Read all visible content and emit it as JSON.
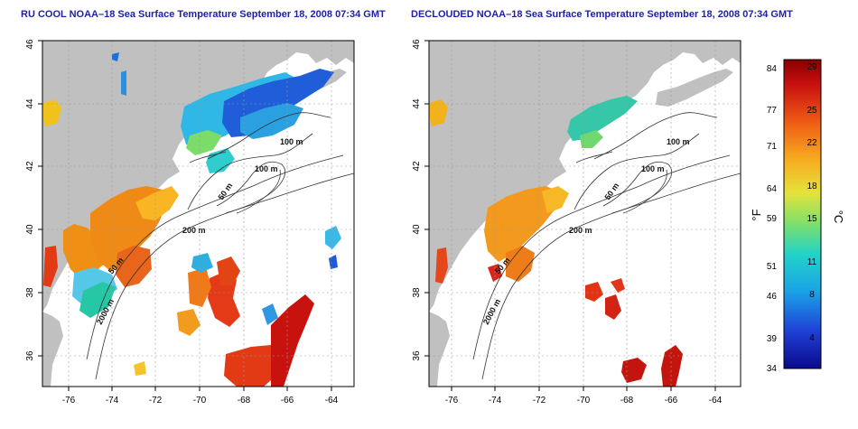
{
  "panels": {
    "left": {
      "title": "RU COOL NOAA–18 Sea Surface Temperature September 18, 2008 07:34 GMT",
      "contour_labels": [
        "100 m",
        "100 m",
        "50 m",
        "200 m",
        "50 m",
        "2000 m"
      ]
    },
    "right": {
      "title": "DECLOUDED NOAA–18 Sea Surface Temperature September 18, 2008 07:34 GMT",
      "contour_labels": [
        "100 m",
        "100 m",
        "50 m",
        "200 m",
        "50 m",
        "2000 m"
      ]
    }
  },
  "axes": {
    "lon_ticks": [
      "-76",
      "-74",
      "-72",
      "-70",
      "-68",
      "-66",
      "-64"
    ],
    "lat_ticks": [
      "36",
      "38",
      "40",
      "42",
      "44",
      "46"
    ],
    "lon_range": [
      -77,
      -63
    ],
    "lat_range": [
      35,
      46
    ]
  },
  "colorbar": {
    "left_unit": "°F",
    "right_unit": "°C",
    "fahrenheit_ticks": [
      "84",
      "77",
      "71",
      "64",
      "59",
      "51",
      "46",
      "39",
      "34"
    ],
    "celsius_ticks": [
      "29",
      "25",
      "22",
      "18",
      "15",
      "11",
      "8",
      "4"
    ],
    "range_c": [
      1,
      29.5
    ],
    "colors": [
      "#0a0a8c",
      "#1f3fd6",
      "#1aa3e6",
      "#22d3c8",
      "#7ee06a",
      "#e6e23a",
      "#f7a91f",
      "#ee5a14",
      "#c81010",
      "#8a0000"
    ]
  },
  "colors": {
    "land": "#c0c0c0",
    "ocean": "#ffffff",
    "contour": "#333333",
    "title": "#1f1fa8"
  }
}
